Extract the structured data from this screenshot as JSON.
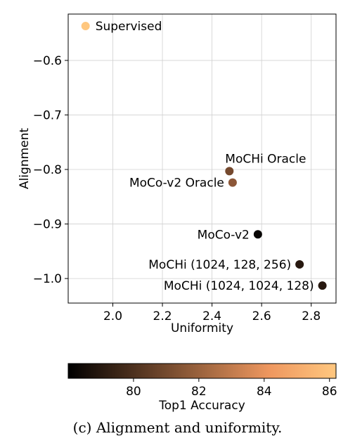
{
  "chart_data": {
    "type": "scatter",
    "xlabel": "Uniformity",
    "ylabel": "Alignment",
    "xlim": [
      1.82,
      2.9
    ],
    "ylim": [
      -1.045,
      -0.515
    ],
    "xticks": [
      2.0,
      2.2,
      2.4,
      2.6,
      2.8
    ],
    "xtick_labels": [
      "2.0",
      "2.2",
      "2.4",
      "2.6",
      "2.8"
    ],
    "yticks": [
      -0.6,
      -0.7,
      -0.8,
      -0.9,
      -1.0
    ],
    "ytick_labels": [
      "−0.6",
      "−0.7",
      "−0.8",
      "−0.9",
      "−1.0"
    ],
    "grid": true,
    "points": [
      {
        "label": "Supervised",
        "x": 1.89,
        "y": -0.537,
        "accuracy": 86.5
      },
      {
        "label": "MoChi Oracle",
        "x": 2.47,
        "y": -0.803,
        "accuracy": 81.0
      },
      {
        "label": "MoCo-v2 Oracle",
        "x": 2.483,
        "y": -0.824,
        "accuracy": 81.6
      },
      {
        "label": "MoCo-v2",
        "x": 2.585,
        "y": -0.919,
        "accuracy": 78.2
      },
      {
        "label": "MoCHi (1024, 128, 256)",
        "x": 2.753,
        "y": -0.974,
        "accuracy": 79.0
      },
      {
        "label": "MoCHi (1024, 1024, 128)",
        "x": 2.845,
        "y": -1.013,
        "accuracy": 79.0
      }
    ],
    "point_labels": [
      {
        "text": "Supervised"
      },
      {
        "text": "MoCHi Oracle"
      },
      {
        "text": "MoCo-v2 Oracle"
      },
      {
        "text": "MoCo-v2"
      },
      {
        "text": "MoCHi (1024, 128, 256)"
      },
      {
        "text": "MoCHi (1024, 1024, 128)"
      }
    ],
    "colorbar": {
      "label": "Top1 Accuracy",
      "range": [
        78.0,
        86.2
      ],
      "ticks": [
        80,
        82,
        84,
        86
      ],
      "tick_labels": [
        "80",
        "82",
        "84",
        "86"
      ],
      "colormap": "copper"
    }
  },
  "caption": "(c) Alignment and uniformity."
}
